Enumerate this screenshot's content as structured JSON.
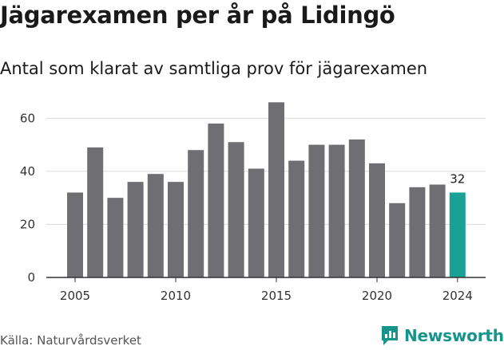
{
  "title": "Jägarexamen per år på Lidingö",
  "subtitle": "Antal som klarat av samtliga prov för jägarexamen",
  "source": "Källa: Naturvårdsverket",
  "brand": {
    "name": "Newsworthy",
    "icon": "newsworthy-logo-icon"
  },
  "colors": {
    "bar": "#6e6e73",
    "highlight": "#1aa196",
    "grid": "#d9d9d9",
    "axis": "#333333"
  },
  "chart_data": {
    "type": "bar",
    "title": "Jägarexamen per år på Lidingö",
    "subtitle": "Antal som klarat av samtliga prov för jägarexamen",
    "xlabel": "",
    "ylabel": "",
    "categories": [
      2005,
      2006,
      2007,
      2008,
      2009,
      2010,
      2011,
      2012,
      2013,
      2014,
      2015,
      2016,
      2017,
      2018,
      2019,
      2020,
      2021,
      2022,
      2023,
      2024
    ],
    "values": [
      32,
      49,
      30,
      36,
      39,
      36,
      48,
      58,
      51,
      41,
      66,
      44,
      50,
      50,
      52,
      43,
      28,
      34,
      35,
      32
    ],
    "highlight": 2024,
    "annotation": {
      "category": 2024,
      "text": "32"
    },
    "ylim": [
      0,
      70
    ],
    "yticks": [
      0,
      20,
      40,
      60
    ],
    "xticks": [
      2005,
      2010,
      2015,
      2020,
      2024
    ],
    "grid": true,
    "legend": "none"
  }
}
